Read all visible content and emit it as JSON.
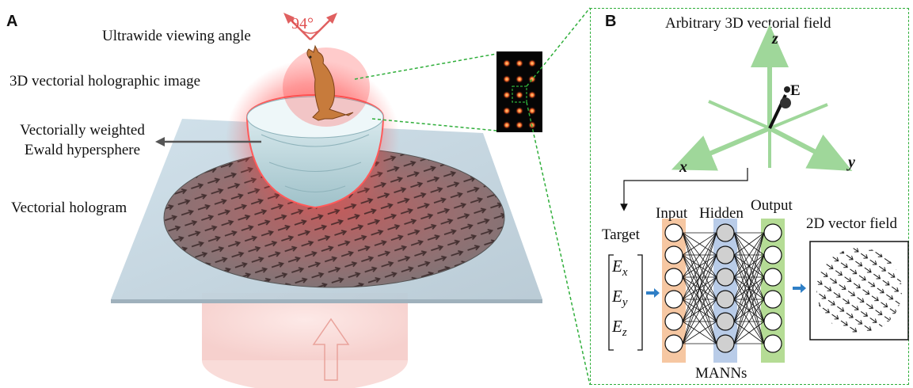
{
  "panel_a": {
    "letter": "A",
    "angle_label": "94°",
    "view_label": "Ultrawide viewing angle",
    "image_label": "3D vectorial holographic image",
    "ewald_label_1": "Vectorially weighted",
    "ewald_label_2": "Ewald hypersphere",
    "hologram_label": "Vectorial hologram"
  },
  "panel_b": {
    "letter": "B",
    "title": "Arbitrary 3D vectorial field",
    "axis_z": "z",
    "axis_x": "x",
    "axis_y": "y",
    "field_label": "E",
    "target_label": "Target",
    "vector_ex_base": "E",
    "vector_ex_sub": "x",
    "vector_ey_base": "E",
    "vector_ey_sub": "y",
    "vector_ez_base": "E",
    "vector_ez_sub": "z",
    "input_label": "Input",
    "hidden_label": "Hidden",
    "output_label": "Output",
    "vector_field_label": "2D vector field",
    "network_label": "MANNs"
  },
  "colors": {
    "dashed_green": "#2fae3a",
    "axis_green": "#9fd79a",
    "glow_red": "#e23a3a",
    "input_layer": "#f6c7a2",
    "hidden_layer": "#b9cce8",
    "output_layer": "#b5dc95",
    "arrow_blue": "#2f7fc6"
  }
}
